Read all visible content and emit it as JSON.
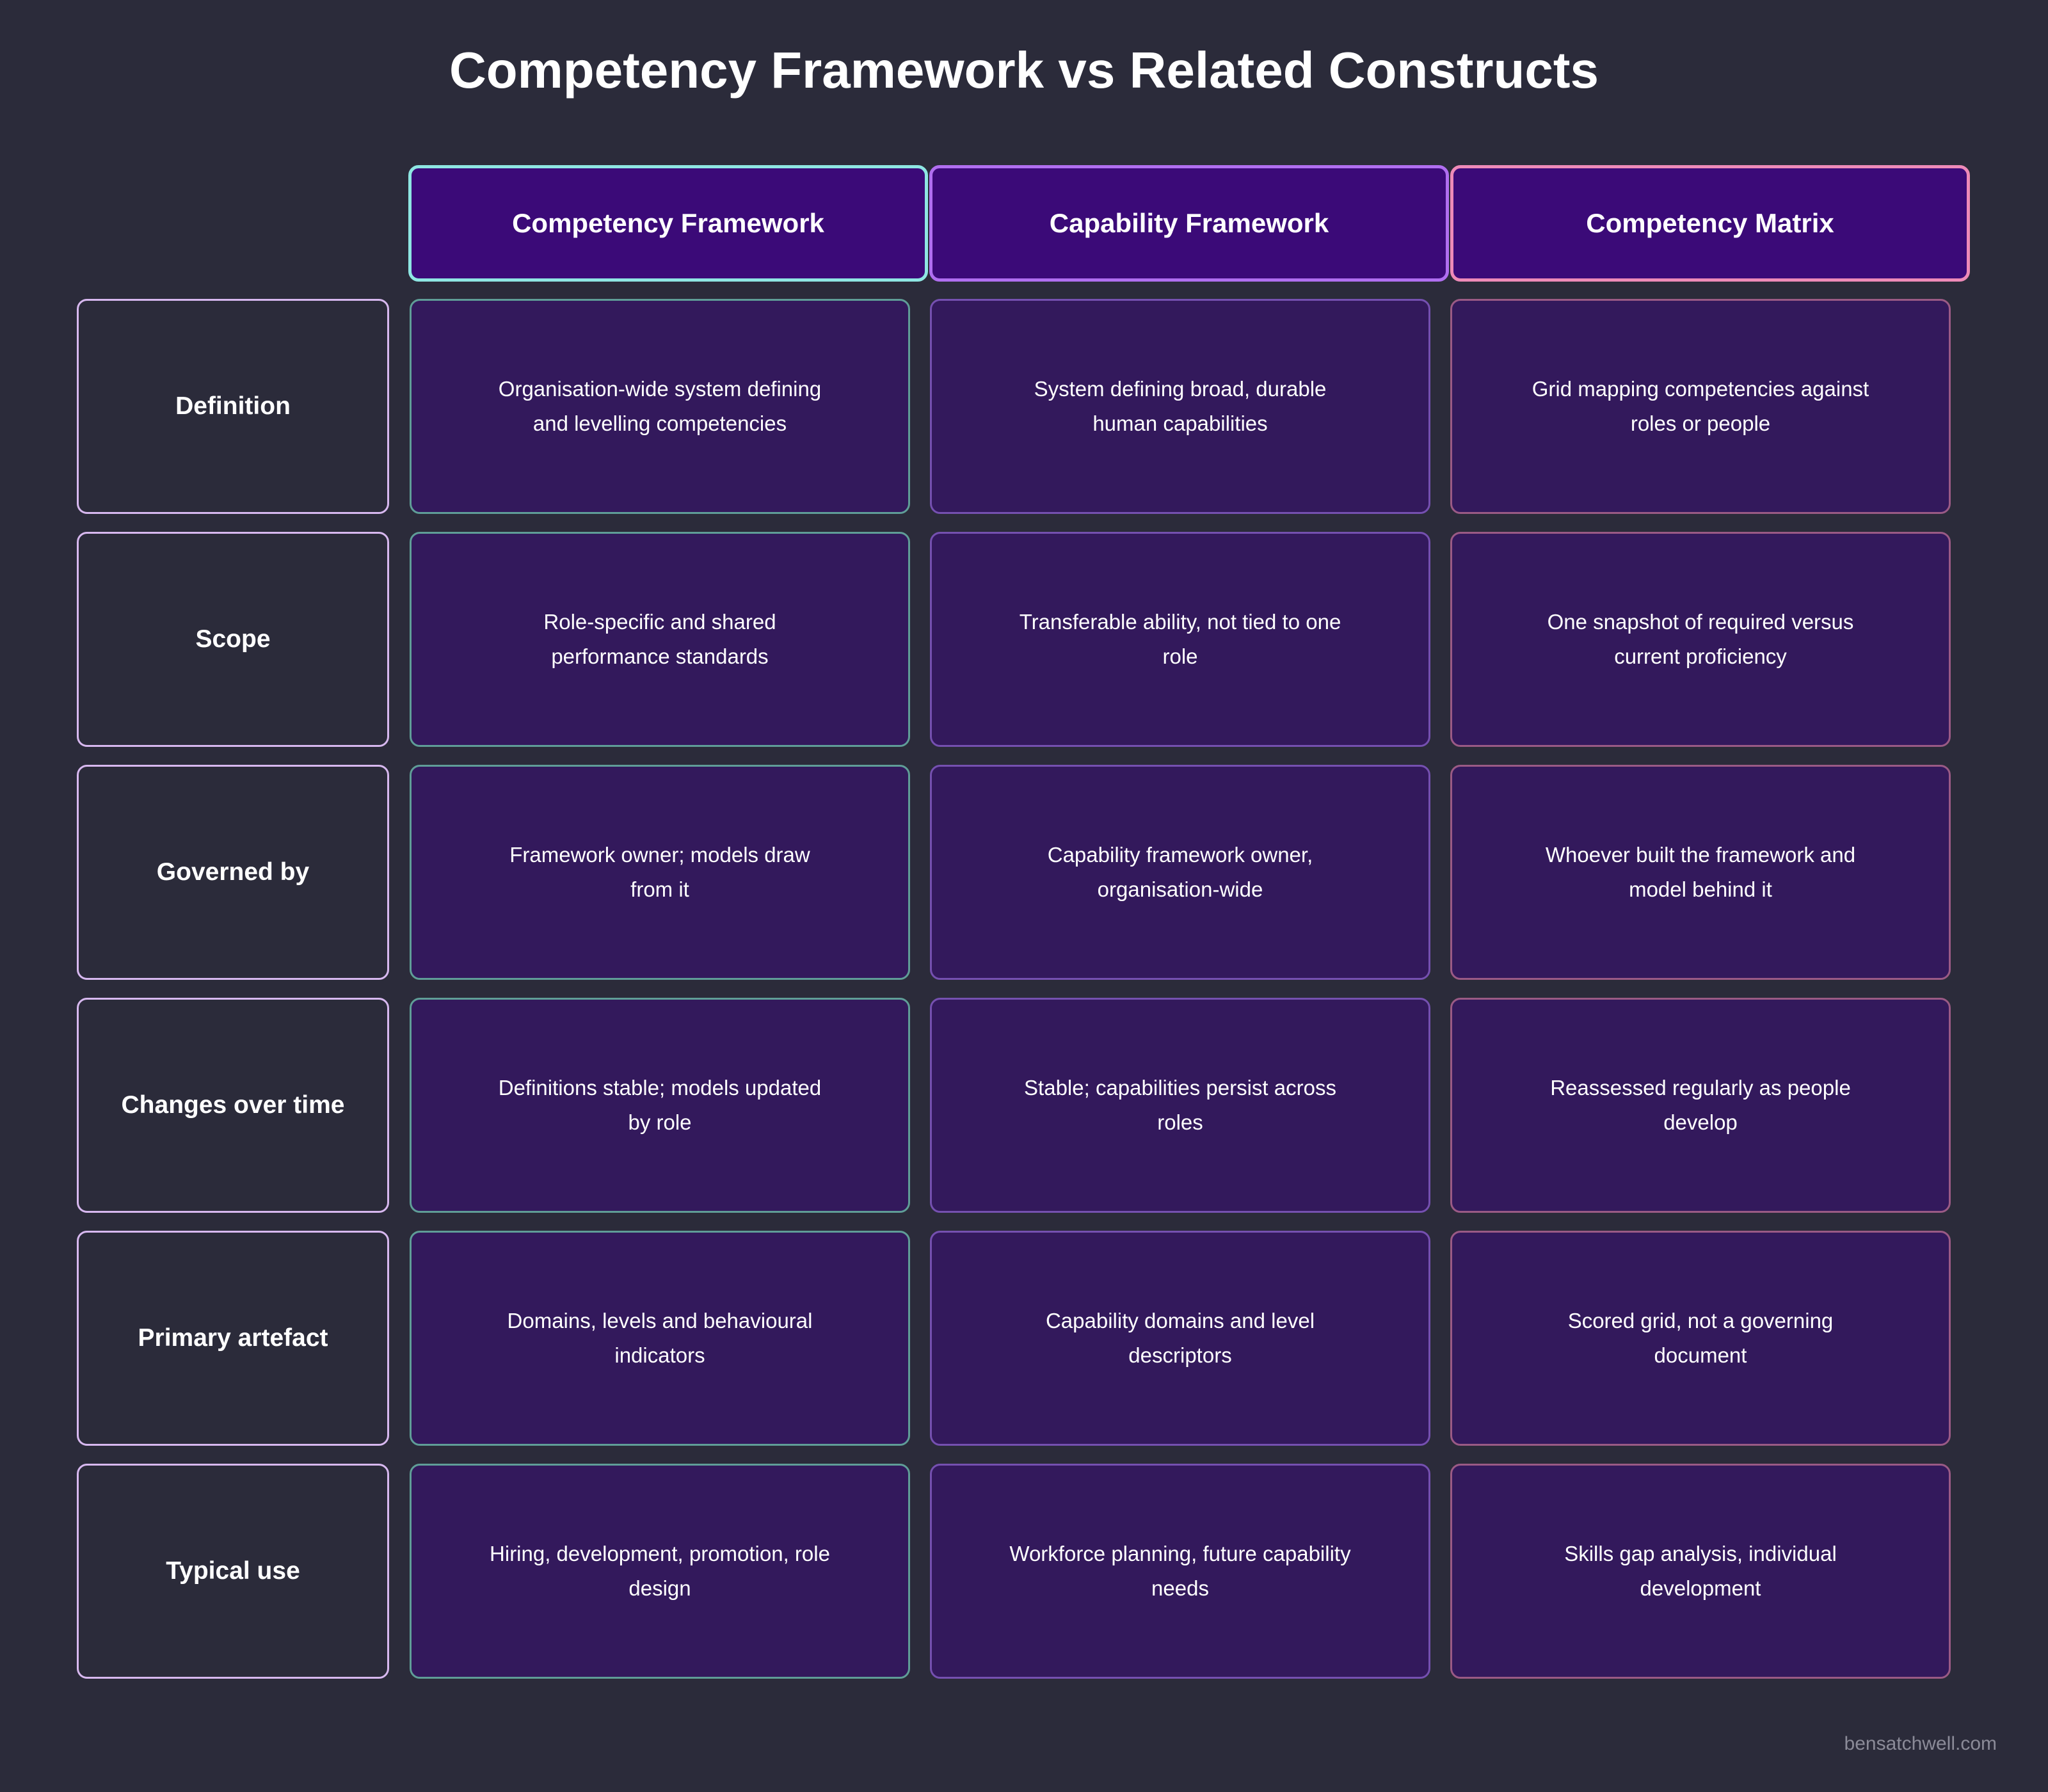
{
  "title": "Competency Framework vs Related Constructs",
  "columns": [
    "Competency Framework",
    "Capability Framework",
    "Competency Matrix"
  ],
  "rows": [
    {
      "label": "Definition",
      "cells": [
        "Organisation-wide system defining and levelling competencies",
        "System defining broad, durable human capabilities",
        "Grid mapping competencies against roles or people"
      ]
    },
    {
      "label": "Scope",
      "cells": [
        "Role-specific and shared performance standards",
        "Transferable ability, not tied to one role",
        "One snapshot of required versus current proficiency"
      ]
    },
    {
      "label": "Governed by",
      "cells": [
        "Framework owner; models draw from it",
        "Capability framework owner, organisation-wide",
        "Whoever built the framework and model behind it"
      ]
    },
    {
      "label": "Changes over time",
      "cells": [
        "Definitions stable; models updated by role",
        "Stable; capabilities persist across roles",
        "Reassessed regularly as people develop"
      ]
    },
    {
      "label": "Primary artefact",
      "cells": [
        "Domains, levels and behavioural indicators",
        "Capability domains and level descriptors",
        "Scored grid, not a governing document"
      ]
    },
    {
      "label": "Typical use",
      "cells": [
        "Hiring, development, promotion, role design",
        "Workforce planning, future capability needs",
        "Skills gap analysis, individual development"
      ]
    }
  ],
  "footer": "bensatchwell.com",
  "colors": {
    "background": "#2b2b3a",
    "header_fill": "#3b0a78",
    "cell_fill": "#33195c",
    "col1_accent": "#8ee6e3",
    "col2_accent": "#b06ef0",
    "col3_accent": "#ee8ab8",
    "row_label_border": "#d7b8ef"
  }
}
